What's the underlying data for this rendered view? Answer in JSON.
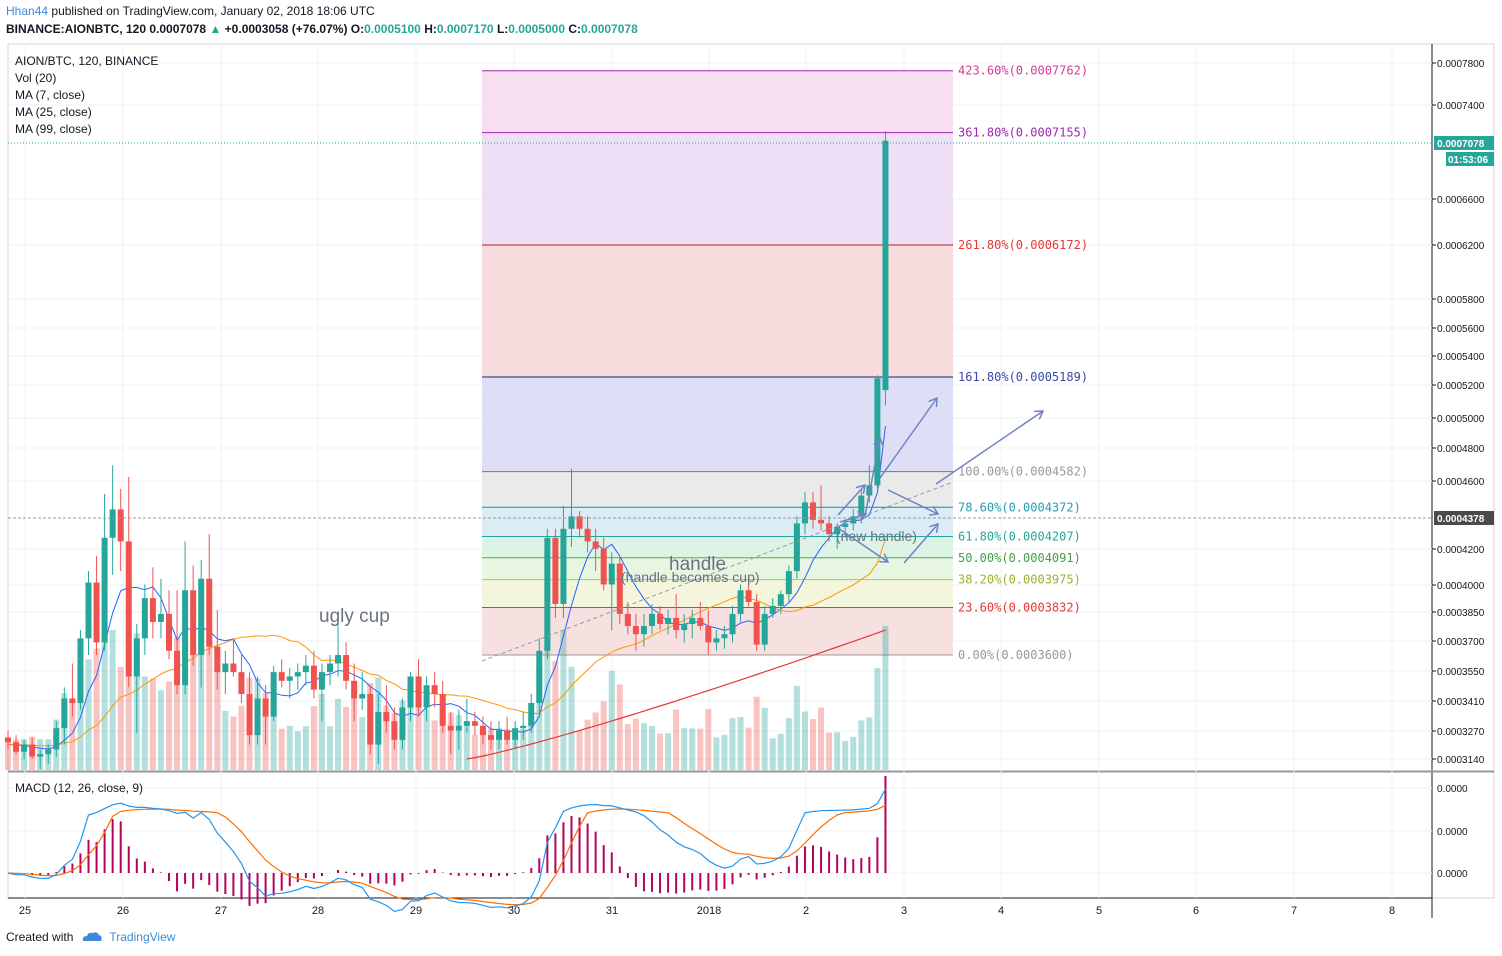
{
  "header": {
    "author": "Hhan44",
    "published_text": "published on TradingView.com, January 02, 2018 18:06 UTC",
    "symbol": "BINANCE:AIONBTC, 120",
    "last": "0.0007078",
    "change_arrow": "▲",
    "change": "+0.0003058 (+76.07%)",
    "o_label": "O:",
    "o": "0.0005100",
    "h_label": "H:",
    "h": "0.0007170",
    "l_label": "L:",
    "l": "0.0005000",
    "c_label": "C:",
    "c": "0.0007078"
  },
  "legend": {
    "symbol": "AION/BTC, 120, BINANCE",
    "vol": "Vol (20)",
    "ma7": "MA (7, close)",
    "ma25": "MA (25, close)",
    "ma99": "MA (99, close)",
    "macd": "MACD (12, 26, close, 9)"
  },
  "annotations": {
    "ugly_cup": "ugly cup",
    "handle": "handle",
    "handle_becomes_cup": "(handle becomes cup)",
    "new_handle": "(new handle)"
  },
  "price_badges": {
    "last_price": "0.0007078",
    "countdown": "01:53:06",
    "crosshair_price": "0.0004378"
  },
  "footer": {
    "created_with": "Created with",
    "brand": "TradingView"
  },
  "colors": {
    "up": "#26a69a",
    "down": "#ef5350",
    "ma7": "#2962ff",
    "ma25": "#ff9800",
    "ma99": "#e53935",
    "macd": "#2196f3",
    "signal": "#ff6d00",
    "hist": "#b5005c",
    "arrows": "#6f83c4"
  },
  "chart_data": [
    {
      "type": "candlestick",
      "title": "AION/BTC, 120, BINANCE",
      "x_ticks": [
        "25",
        "26",
        "27",
        "28",
        "29",
        "30",
        "31",
        "2018",
        "2",
        "3",
        "4",
        "5",
        "6",
        "7",
        "8"
      ],
      "y_ticks": [
        "0.0007800",
        "0.0007400",
        "0.0006600",
        "0.0006200",
        "0.0005800",
        "0.0005600",
        "0.0005400",
        "0.0005200",
        "0.0005000",
        "0.0004800",
        "0.0004600",
        "0.0004200",
        "0.0004000",
        "0.0003850",
        "0.0003700",
        "0.0003550",
        "0.0003410",
        "0.0003270",
        "0.0003140"
      ],
      "y_scale": "log",
      "candles": [
        [
          0.000323,
          0.000326,
          0.000318,
          0.000321
        ],
        [
          0.000321,
          0.000324,
          0.000316,
          0.000317
        ],
        [
          0.000317,
          0.000322,
          0.000314,
          0.00032
        ],
        [
          0.00032,
          0.000323,
          0.000314,
          0.000315
        ],
        [
          0.000315,
          0.000318,
          0.00031,
          0.000316
        ],
        [
          0.000316,
          0.00032,
          0.000312,
          0.000318
        ],
        [
          0.000318,
          0.00033,
          0.000315,
          0.000327
        ],
        [
          0.000327,
          0.000345,
          0.00032,
          0.00034
        ],
        [
          0.00034,
          0.000356,
          0.000332,
          0.000338
        ],
        [
          0.000338,
          0.000372,
          0.000335,
          0.000368
        ],
        [
          0.000368,
          0.000402,
          0.00036,
          0.000396
        ],
        [
          0.000396,
          0.00041,
          0.00036,
          0.000366
        ],
        [
          0.000366,
          0.000445,
          0.000362,
          0.00042
        ],
        [
          0.00042,
          0.000462,
          0.0004,
          0.000436
        ],
        [
          0.000436,
          0.000448,
          0.000402,
          0.000418
        ],
        [
          0.000418,
          0.000455,
          0.000345,
          0.00035
        ],
        [
          0.00035,
          0.000375,
          0.000325,
          0.000368
        ],
        [
          0.000368,
          0.000395,
          0.00036,
          0.000388
        ],
        [
          0.000388,
          0.000404,
          0.000368,
          0.000376
        ],
        [
          0.000376,
          0.000398,
          0.000368,
          0.00038
        ],
        [
          0.00038,
          0.000392,
          0.000358,
          0.000362
        ],
        [
          0.000362,
          0.000392,
          0.000342,
          0.000346
        ],
        [
          0.000346,
          0.000418,
          0.000342,
          0.000392
        ],
        [
          0.000392,
          0.000405,
          0.000355,
          0.00036
        ],
        [
          0.00036,
          0.000408,
          0.000345,
          0.000398
        ],
        [
          0.000398,
          0.000422,
          0.00036,
          0.000364
        ],
        [
          0.000364,
          0.000382,
          0.000344,
          0.000352
        ],
        [
          0.000352,
          0.000362,
          0.000342,
          0.000356
        ],
        [
          0.000356,
          0.000368,
          0.00035,
          0.000352
        ],
        [
          0.000352,
          0.00036,
          0.000338,
          0.000342
        ],
        [
          0.000342,
          0.000352,
          0.00032,
          0.000324
        ],
        [
          0.000324,
          0.00035,
          0.00032,
          0.00034
        ],
        [
          0.00034,
          0.000346,
          0.00032,
          0.000332
        ],
        [
          0.000332,
          0.000355,
          0.00033,
          0.000352
        ],
        [
          0.000352,
          0.000358,
          0.000345,
          0.000348
        ],
        [
          0.000348,
          0.000354,
          0.00034,
          0.00035
        ],
        [
          0.00035,
          0.000356,
          0.000344,
          0.000352
        ],
        [
          0.000352,
          0.00036,
          0.000346,
          0.000355
        ],
        [
          0.000355,
          0.000362,
          0.00034,
          0.000344
        ],
        [
          0.000344,
          0.000356,
          0.00033,
          0.000352
        ],
        [
          0.000352,
          0.00036,
          0.000346,
          0.000356
        ],
        [
          0.000356,
          0.000375,
          0.00035,
          0.00036
        ],
        [
          0.00036,
          0.000366,
          0.000344,
          0.000348
        ],
        [
          0.000348,
          0.000356,
          0.00033,
          0.00034
        ],
        [
          0.00034,
          0.000352,
          0.000335,
          0.000342
        ],
        [
          0.000342,
          0.000346,
          0.000316,
          0.00032
        ],
        [
          0.00032,
          0.000342,
          0.000312,
          0.000334
        ],
        [
          0.000334,
          0.000346,
          0.000325,
          0.00033
        ],
        [
          0.00033,
          0.000336,
          0.000318,
          0.000322
        ],
        [
          0.000322,
          0.00034,
          0.000318,
          0.000336
        ],
        [
          0.000336,
          0.000352,
          0.00033,
          0.00035
        ],
        [
          0.00035,
          0.000358,
          0.000332,
          0.000336
        ],
        [
          0.000336,
          0.00035,
          0.00033,
          0.000346
        ],
        [
          0.000346,
          0.000352,
          0.000336,
          0.000342
        ],
        [
          0.000342,
          0.000348,
          0.000325,
          0.000328
        ],
        [
          0.000328,
          0.000334,
          0.000316,
          0.000326
        ],
        [
          0.000326,
          0.000335,
          0.000318,
          0.000328
        ],
        [
          0.000328,
          0.00034,
          0.000325,
          0.00033
        ],
        [
          0.00033,
          0.000334,
          0.000324,
          0.000328
        ],
        [
          0.000328,
          0.000332,
          0.00032,
          0.000324
        ],
        [
          0.000324,
          0.00033,
          0.000318,
          0.000322
        ],
        [
          0.000322,
          0.00033,
          0.000318,
          0.000326
        ],
        [
          0.000326,
          0.000332,
          0.00032,
          0.000322
        ],
        [
          0.000322,
          0.00033,
          0.000318,
          0.000327
        ],
        [
          0.000327,
          0.000334,
          0.000322,
          0.000328
        ],
        [
          0.000328,
          0.000342,
          0.000325,
          0.000338
        ],
        [
          0.000338,
          0.000368,
          0.000332,
          0.000362
        ],
        [
          0.000362,
          0.000425,
          0.000358,
          0.00042
        ],
        [
          0.00042,
          0.000425,
          0.000378,
          0.000385
        ],
        [
          0.000385,
          0.000438,
          0.000378,
          0.000425
        ],
        [
          0.000425,
          0.00046,
          0.000415,
          0.000432
        ],
        [
          0.000432,
          0.000435,
          0.00042,
          0.000425
        ],
        [
          0.000425,
          0.000432,
          0.000412,
          0.000418
        ],
        [
          0.000418,
          0.000425,
          0.000402,
          0.000414
        ],
        [
          0.000414,
          0.00042,
          0.000392,
          0.000395
        ],
        [
          0.000395,
          0.000412,
          0.000372,
          0.000406
        ],
        [
          0.000406,
          0.00041,
          0.000375,
          0.00038
        ],
        [
          0.00038,
          0.000386,
          0.00037,
          0.000374
        ],
        [
          0.000374,
          0.00038,
          0.000362,
          0.00037
        ],
        [
          0.00037,
          0.00038,
          0.000364,
          0.000374
        ],
        [
          0.000374,
          0.000385,
          0.00037,
          0.00038
        ],
        [
          0.00038,
          0.000384,
          0.000372,
          0.000375
        ],
        [
          0.000375,
          0.000382,
          0.00037,
          0.000378
        ],
        [
          0.000378,
          0.00039,
          0.000368,
          0.000372
        ],
        [
          0.000372,
          0.00038,
          0.000366,
          0.000375
        ],
        [
          0.000375,
          0.000382,
          0.000368,
          0.000378
        ],
        [
          0.000378,
          0.000386,
          0.000372,
          0.000374
        ],
        [
          0.000374,
          0.000382,
          0.00036,
          0.000366
        ],
        [
          0.000366,
          0.000372,
          0.000362,
          0.000368
        ],
        [
          0.000368,
          0.000374,
          0.000363,
          0.00037
        ],
        [
          0.00037,
          0.000384,
          0.000366,
          0.00038
        ],
        [
          0.00038,
          0.000395,
          0.000376,
          0.000392
        ],
        [
          0.000392,
          0.000398,
          0.000383,
          0.000386
        ],
        [
          0.000386,
          0.00039,
          0.000362,
          0.000365
        ],
        [
          0.000365,
          0.000384,
          0.000362,
          0.00038
        ],
        [
          0.00038,
          0.000388,
          0.000378,
          0.000384
        ],
        [
          0.000384,
          0.000392,
          0.00038,
          0.00039
        ],
        [
          0.00039,
          0.000405,
          0.000386,
          0.000402
        ],
        [
          0.000402,
          0.000432,
          0.000398,
          0.000428
        ],
        [
          0.000428,
          0.000446,
          0.000422,
          0.00044
        ],
        [
          0.00044,
          0.000446,
          0.000425,
          0.00043
        ],
        [
          0.00043,
          0.00045,
          0.000424,
          0.000428
        ],
        [
          0.000428,
          0.000432,
          0.000418,
          0.000422
        ],
        [
          0.000422,
          0.000428,
          0.000414,
          0.000426
        ],
        [
          0.000426,
          0.00043,
          0.00042,
          0.000428
        ],
        [
          0.000428,
          0.000436,
          0.000424,
          0.000432
        ],
        [
          0.000432,
          0.000448,
          0.000428,
          0.000444
        ],
        [
          0.000444,
          0.000462,
          0.00044,
          0.00045
        ],
        [
          0.00045,
          0.00052,
          0.000448,
          0.000518
        ],
        [
          0.00051,
          0.000717,
          0.0005,
          0.000708
        ]
      ],
      "moving_averages": {
        "MA (7, close)": "blue",
        "MA (25, close)": "orange",
        "MA (99, close)": "red"
      },
      "fibonacci": {
        "levels": [
          {
            "label": "423.60%(0.0007762)",
            "value": 0.0007762
          },
          {
            "label": "361.80%(0.0007155)",
            "value": 0.0007155
          },
          {
            "label": "261.80%(0.0006172)",
            "value": 0.0006172
          },
          {
            "label": "161.80%(0.0005189)",
            "value": 0.0005189
          },
          {
            "label": "100.00%(0.0004582)",
            "value": 0.0004582
          },
          {
            "label": "78.60%(0.0004372)",
            "value": 0.0004372
          },
          {
            "label": "61.80%(0.0004207)",
            "value": 0.0004207
          },
          {
            "label": "50.00%(0.0004091)",
            "value": 0.0004091
          },
          {
            "label": "38.20%(0.0003975)",
            "value": 0.0003975
          },
          {
            "label": "23.60%(0.0003832)",
            "value": 0.0003832
          },
          {
            "label": "0.00%(0.0003600)",
            "value": 0.00036
          }
        ]
      }
    },
    {
      "type": "histogram",
      "title": "MACD (12, 26, close, 9)",
      "y_ticks": [
        "0.0000",
        "0.0000",
        "0.0000"
      ]
    }
  ]
}
